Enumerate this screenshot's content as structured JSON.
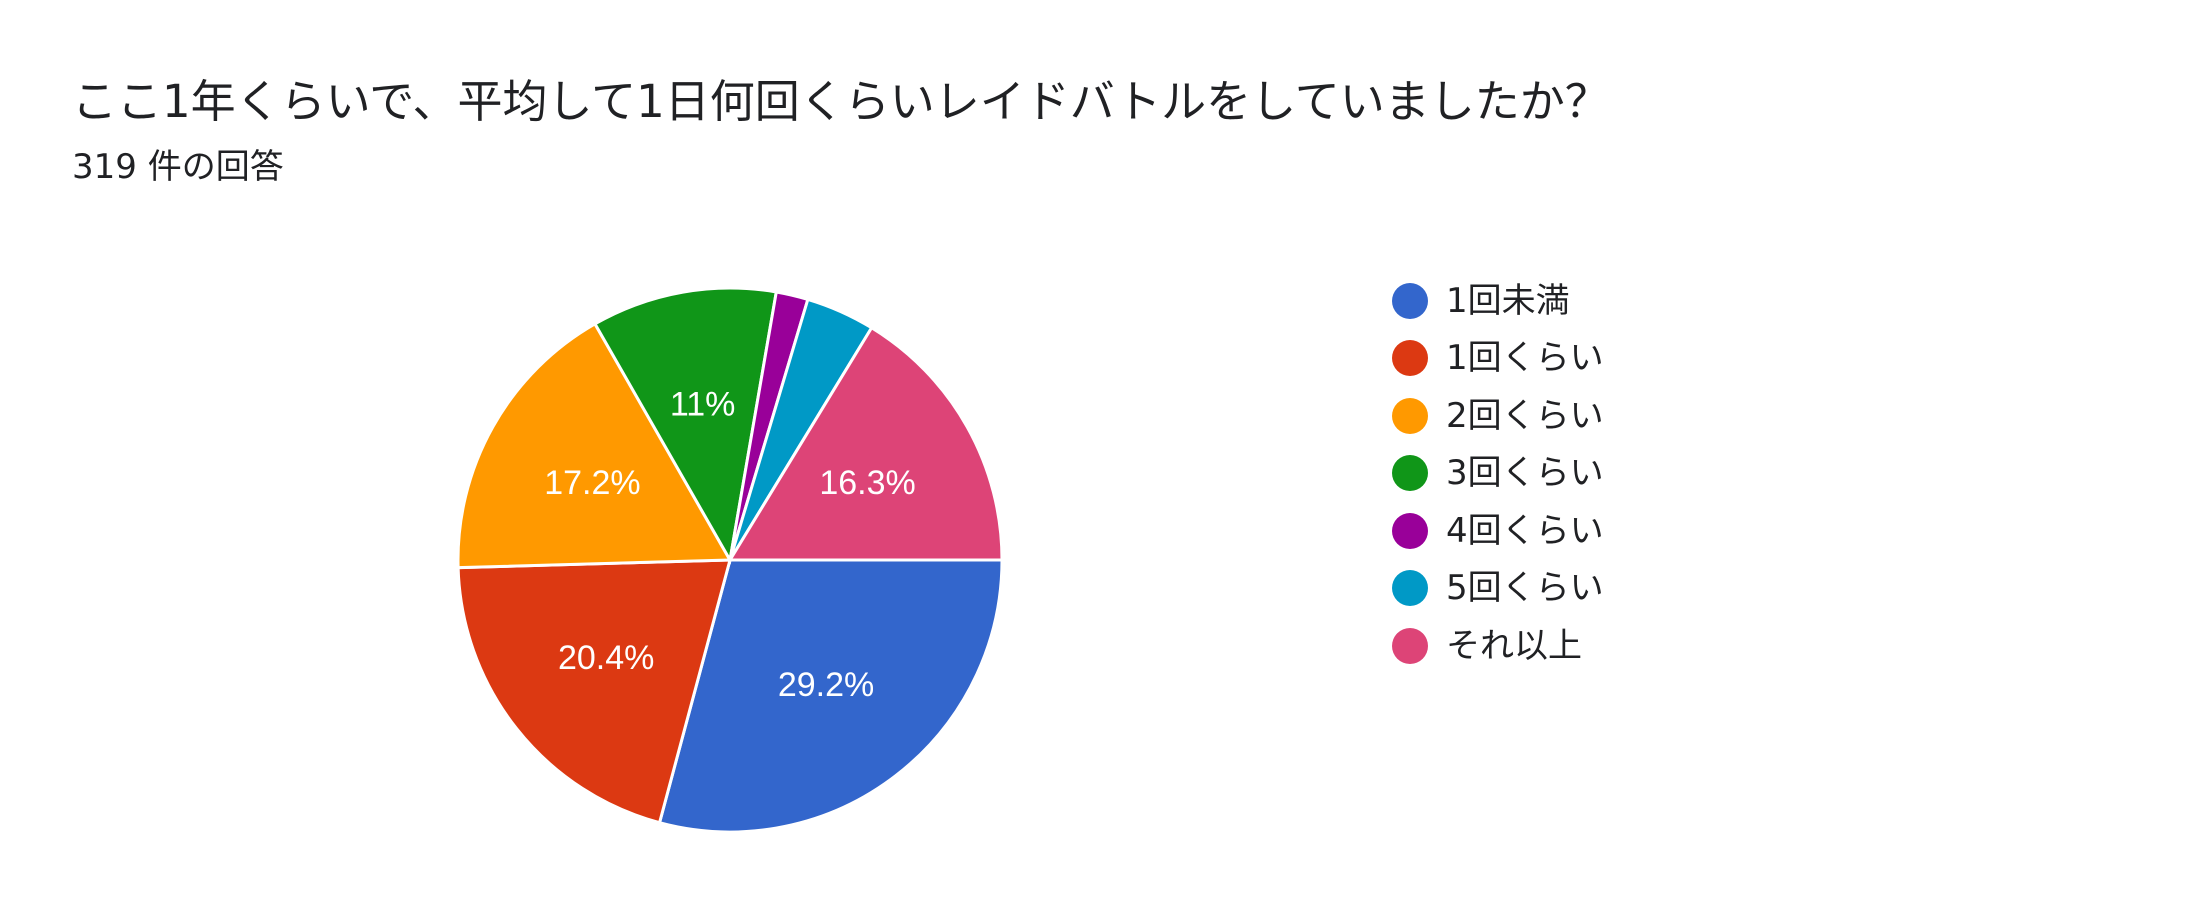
{
  "form": {
    "question": "ここ1年くらいで、平均して1日何回くらいレイドバトルをしていましたか？",
    "responses": "319 件の回答"
  },
  "colors": {
    "blue": "#3366CC",
    "red": "#DC3912",
    "orange": "#FF9900",
    "green": "#109618",
    "purple": "#990099",
    "teal": "#0099C6",
    "pink": "#DD4477"
  },
  "chart_data": {
    "type": "pie",
    "title": "ここ1年くらいで、平均して1日何回くらいレイドバトルをしていましたか？",
    "subtitle": "319 件の回答",
    "legend_position": "right",
    "categories": [
      "1回未満",
      "1回くらい",
      "2回くらい",
      "3回くらい",
      "4回くらい",
      "5回くらい",
      "それ以上"
    ],
    "values": [
      29.2,
      20.4,
      17.2,
      11.0,
      1.9,
      4.1,
      16.3
    ],
    "value_labels": [
      "29.2%",
      "20.4%",
      "17.2%",
      "11%",
      "",
      "",
      "16.3%"
    ],
    "colors": [
      "#3366CC",
      "#DC3912",
      "#FF9900",
      "#109618",
      "#990099",
      "#0099C6",
      "#DD4477"
    ]
  }
}
